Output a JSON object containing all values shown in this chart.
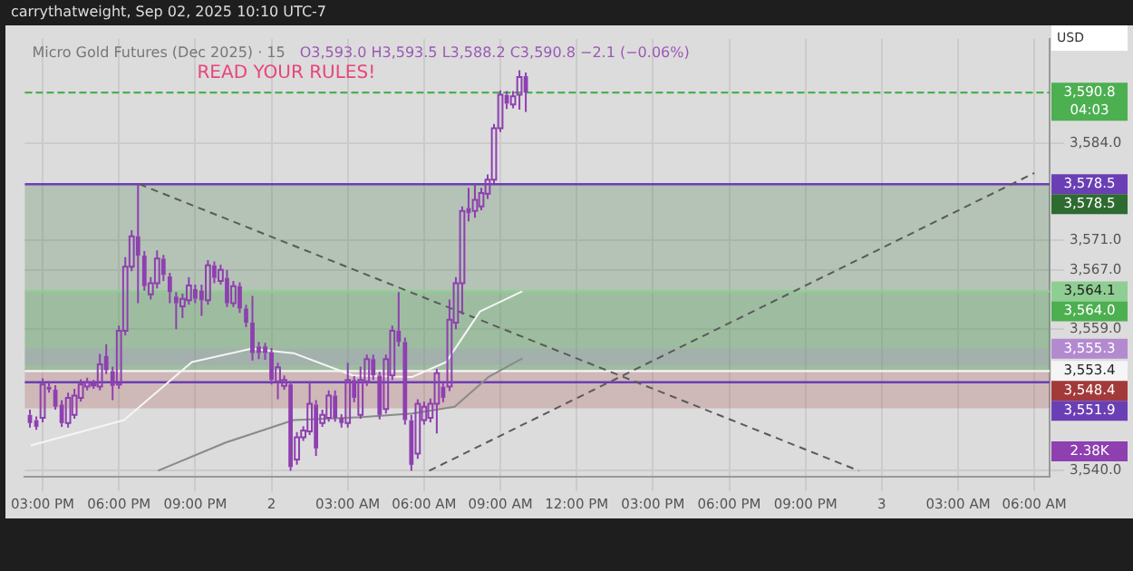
{
  "chart_data": {
    "type": "candlestick",
    "title": "Micro Gold Futures (Dec 2025) · 15",
    "subtitle": "O3,593.0 H3,593.5 L3,588.2 C3,590.8 −2.1 (−0.06%)",
    "annotations": [
      "carrythatweight, Sep 02, 2025 10:10 UTC-7",
      "READ YOUR RULES!",
      "USD",
      "2.38K"
    ],
    "color": "#8e3fb0",
    "x": [
      "2025-09-01T14:30",
      "2025-09-01T14:45",
      "2025-09-01T15:00",
      "2025-09-01T15:15",
      "2025-09-01T15:30",
      "2025-09-01T15:45",
      "2025-09-01T16:00",
      "2025-09-01T16:15",
      "2025-09-01T16:30",
      "2025-09-01T16:45",
      "2025-09-01T17:00",
      "2025-09-01T17:15",
      "2025-09-01T17:30",
      "2025-09-01T17:45",
      "2025-09-01T18:00",
      "2025-09-01T18:15",
      "2025-09-01T18:30",
      "2025-09-01T18:45",
      "2025-09-01T19:00",
      "2025-09-01T19:15",
      "2025-09-01T19:30",
      "2025-09-01T19:45",
      "2025-09-01T20:00",
      "2025-09-01T20:15",
      "2025-09-01T20:30",
      "2025-09-01T20:45",
      "2025-09-01T21:00",
      "2025-09-01T21:15",
      "2025-09-01T21:30",
      "2025-09-01T21:45",
      "2025-09-01T22:00",
      "2025-09-01T22:15",
      "2025-09-01T22:30",
      "2025-09-01T22:45",
      "2025-09-01T23:00",
      "2025-09-01T23:15",
      "2025-09-01T23:30",
      "2025-09-01T23:45",
      "2025-09-02T00:00",
      "2025-09-02T00:15",
      "2025-09-02T00:30",
      "2025-09-02T00:45",
      "2025-09-02T01:00",
      "2025-09-02T01:15",
      "2025-09-02T01:30",
      "2025-09-02T01:45",
      "2025-09-02T02:00",
      "2025-09-02T02:15",
      "2025-09-02T02:30",
      "2025-09-02T02:45",
      "2025-09-02T03:00",
      "2025-09-02T03:15",
      "2025-09-02T03:30",
      "2025-09-02T03:45",
      "2025-09-02T04:00",
      "2025-09-02T04:15",
      "2025-09-02T04:30",
      "2025-09-02T04:45",
      "2025-09-02T05:00",
      "2025-09-02T05:15",
      "2025-09-02T05:30",
      "2025-09-02T05:45",
      "2025-09-02T06:00",
      "2025-09-02T06:15",
      "2025-09-02T06:30",
      "2025-09-02T06:45",
      "2025-09-02T07:00",
      "2025-09-02T07:15",
      "2025-09-02T07:30",
      "2025-09-02T07:45",
      "2025-09-02T08:00",
      "2025-09-02T08:15",
      "2025-09-02T08:30",
      "2025-09-02T08:45",
      "2025-09-02T09:00",
      "2025-09-02T09:15",
      "2025-09-02T09:30",
      "2025-09-02T09:45",
      "2025-09-02T10:00"
    ],
    "ohlc": [
      [
        3547.5,
        3548.2,
        3545.8,
        3546.4
      ],
      [
        3546.8,
        3547.3,
        3545.5,
        3545.9
      ],
      [
        3547.1,
        3552.4,
        3546.5,
        3551.6
      ],
      [
        3551.3,
        3552.0,
        3550.5,
        3550.9
      ],
      [
        3550.9,
        3551.5,
        3548.2,
        3548.6
      ],
      [
        3548.9,
        3549.5,
        3545.9,
        3546.4
      ],
      [
        3546.4,
        3550.5,
        3545.8,
        3549.8
      ],
      [
        3547.5,
        3551.0,
        3547.0,
        3550.1
      ],
      [
        3549.8,
        3552.3,
        3549.3,
        3551.6
      ],
      [
        3551.3,
        3552.5,
        3550.8,
        3551.9
      ],
      [
        3551.5,
        3552.2,
        3551.0,
        3551.7
      ],
      [
        3551.3,
        3555.7,
        3550.8,
        3554.3
      ],
      [
        3555.4,
        3557.0,
        3553.0,
        3553.5
      ],
      [
        3553.4,
        3554.0,
        3549.5,
        3551.4
      ],
      [
        3551.6,
        3559.5,
        3551.0,
        3558.8
      ],
      [
        3558.8,
        3568.7,
        3558.2,
        3567.4
      ],
      [
        3567.4,
        3572.3,
        3566.8,
        3571.5
      ],
      [
        3571.5,
        3578.5,
        3562.5,
        3568.9
      ],
      [
        3568.9,
        3569.5,
        3564.2,
        3564.8
      ],
      [
        3563.7,
        3566.0,
        3563.0,
        3565.2
      ],
      [
        3565.2,
        3569.6,
        3564.5,
        3568.5
      ],
      [
        3568.5,
        3569.0,
        3565.5,
        3566.3
      ],
      [
        3566.1,
        3566.6,
        3562.5,
        3564.0
      ],
      [
        3563.4,
        3564.0,
        3559.0,
        3562.5
      ],
      [
        3562.1,
        3563.8,
        3560.5,
        3563.1
      ],
      [
        3562.9,
        3566.0,
        3562.3,
        3564.9
      ],
      [
        3564.4,
        3565.0,
        3562.5,
        3563.1
      ],
      [
        3564.2,
        3565.0,
        3560.8,
        3562.9
      ],
      [
        3562.9,
        3568.3,
        3562.3,
        3567.6
      ],
      [
        3567.6,
        3568.1,
        3565.2,
        3565.9
      ],
      [
        3565.5,
        3567.7,
        3565.0,
        3567.0
      ],
      [
        3565.9,
        3567.0,
        3562.0,
        3562.5
      ],
      [
        3562.5,
        3565.5,
        3562.0,
        3564.8
      ],
      [
        3564.8,
        3565.3,
        3561.2,
        3561.8
      ],
      [
        3561.8,
        3562.3,
        3559.3,
        3559.9
      ],
      [
        3559.9,
        3563.5,
        3554.8,
        3555.8
      ],
      [
        3556.7,
        3557.3,
        3555.0,
        3555.8
      ],
      [
        3556.7,
        3557.2,
        3554.9,
        3555.8
      ],
      [
        3555.9,
        3556.5,
        3551.6,
        3552.2
      ],
      [
        3552.0,
        3554.5,
        3549.6,
        3553.9
      ],
      [
        3551.4,
        3552.8,
        3550.9,
        3552.2
      ],
      [
        3551.6,
        3552.0,
        3540.0,
        3540.5
      ],
      [
        3541.5,
        3545.2,
        3540.8,
        3544.5
      ],
      [
        3544.5,
        3546.0,
        3544.0,
        3545.4
      ],
      [
        3545.3,
        3552.0,
        3544.8,
        3549.0
      ],
      [
        3548.9,
        3549.5,
        3542.0,
        3543.0
      ],
      [
        3546.4,
        3548.2,
        3545.9,
        3547.5
      ],
      [
        3547.1,
        3550.8,
        3546.6,
        3550.1
      ],
      [
        3550.1,
        3550.8,
        3546.6,
        3547.1
      ],
      [
        3547.1,
        3547.6,
        3545.8,
        3546.4
      ],
      [
        3546.4,
        3554.5,
        3545.8,
        3552.2
      ],
      [
        3552.2,
        3552.7,
        3549.2,
        3549.8
      ],
      [
        3547.5,
        3554.0,
        3547.0,
        3552.2
      ],
      [
        3552.0,
        3555.6,
        3551.4,
        3555.0
      ],
      [
        3555.0,
        3555.6,
        3552.2,
        3552.8
      ],
      [
        3552.8,
        3553.3,
        3546.9,
        3547.5
      ],
      [
        3548.3,
        3555.6,
        3547.7,
        3555.0
      ],
      [
        3552.8,
        3559.5,
        3552.2,
        3558.8
      ],
      [
        3558.8,
        3564.0,
        3556.7,
        3557.3
      ],
      [
        3557.3,
        3557.9,
        3546.2,
        3546.8
      ],
      [
        3546.8,
        3547.5,
        3540.0,
        3540.8
      ],
      [
        3542.3,
        3549.6,
        3541.6,
        3549.0
      ],
      [
        3546.8,
        3549.3,
        3546.2,
        3548.6
      ],
      [
        3547.1,
        3549.7,
        3546.5,
        3549.0
      ],
      [
        3549.0,
        3553.7,
        3545.0,
        3553.1
      ],
      [
        3551.3,
        3552.0,
        3549.2,
        3549.8
      ],
      [
        3551.3,
        3563.0,
        3550.7,
        3560.3
      ],
      [
        3559.9,
        3566.0,
        3559.0,
        3565.2
      ],
      [
        3565.2,
        3575.5,
        3561.0,
        3574.9
      ],
      [
        3575.3,
        3578.0,
        3573.5,
        3574.6
      ],
      [
        3574.9,
        3578.5,
        3574.0,
        3576.4
      ],
      [
        3575.5,
        3578.0,
        3575.0,
        3577.3
      ],
      [
        3577.2,
        3579.8,
        3576.5,
        3579.1
      ],
      [
        3579.1,
        3586.6,
        3578.6,
        3586.0
      ],
      [
        3586.0,
        3591.1,
        3585.5,
        3590.5
      ],
      [
        3590.5,
        3591.0,
        3588.6,
        3589.3
      ],
      [
        3589.2,
        3591.0,
        3588.7,
        3590.3
      ],
      [
        3590.5,
        3593.8,
        3588.5,
        3592.9
      ],
      [
        3593.0,
        3593.5,
        3588.2,
        3590.8
      ]
    ],
    "series": [
      {
        "type": "line",
        "color": "#f5f5f5",
        "x": [
          "2025-09-01T14:32",
          "2025-09-01T18:12",
          "2025-09-01T20:52",
          "2025-09-01T23:12",
          "2025-09-02T00:52",
          "2025-09-02T03:12",
          "2025-09-02T05:32",
          "2025-09-02T06:52",
          "2025-09-02T08:12",
          "2025-09-02T09:52"
        ],
        "values": [
          3543.4,
          3546.8,
          3554.6,
          3556.4,
          3555.8,
          3552.8,
          3552.6,
          3554.6,
          3561.4,
          3564.1
        ]
      },
      {
        "type": "line",
        "color": "#8a8a8a",
        "x": [
          "2025-09-01T19:32",
          "2025-09-01T22:12",
          "2025-09-02T00:52",
          "2025-09-02T03:32",
          "2025-09-02T05:32",
          "2025-09-02T07:12",
          "2025-09-02T08:32",
          "2025-09-02T09:52"
        ],
        "values": [
          3540.0,
          3543.8,
          3546.8,
          3547.2,
          3547.7,
          3548.6,
          3552.6,
          3555.1
        ]
      },
      {
        "type": "line",
        "color": "#5a5a5a",
        "line_style": "dashed",
        "x": [
          "2025-09-01T18:48",
          "2025-09-02T23:06"
        ],
        "values": [
          3578.5,
          3540.0
        ]
      },
      {
        "type": "line",
        "color": "#5a5a5a",
        "line_style": "dashed",
        "x": [
          "2025-09-02T06:12",
          "2025-09-03T06:00"
        ],
        "values": [
          3540.0,
          3580.0
        ]
      }
    ],
    "xlim": [
      "2025-09-01T14:18",
      "2025-09-03T06:36"
    ],
    "xticks": [
      {
        "value": "2025-09-01T15:00",
        "label": "03:00 PM"
      },
      {
        "value": "2025-09-01T18:00",
        "label": "06:00 PM"
      },
      {
        "value": "2025-09-01T21:00",
        "label": "09:00 PM"
      },
      {
        "value": "2025-09-02T00:00",
        "label": "2"
      },
      {
        "value": "2025-09-02T03:00",
        "label": "03:00 AM"
      },
      {
        "value": "2025-09-02T06:00",
        "label": "06:00 AM"
      },
      {
        "value": "2025-09-02T09:00",
        "label": "09:00 AM"
      },
      {
        "value": "2025-09-02T12:00",
        "label": "12:00 PM"
      },
      {
        "value": "2025-09-02T15:00",
        "label": "03:00 PM"
      },
      {
        "value": "2025-09-02T18:00",
        "label": "06:00 PM"
      },
      {
        "value": "2025-09-02T21:00",
        "label": "09:00 PM"
      },
      {
        "value": "2025-09-03T00:00",
        "label": "3"
      },
      {
        "value": "2025-09-03T03:00",
        "label": "03:00 AM"
      },
      {
        "value": "2025-09-03T06:00",
        "label": "06:00 AM"
      }
    ],
    "ylim": [
      3539.2,
      3598
    ],
    "yticks": [
      {
        "value": 3540,
        "label": "3,540.0"
      },
      {
        "value": 3559,
        "label": "3,559.0"
      },
      {
        "value": 3567,
        "label": "3,567.0"
      },
      {
        "value": 3571,
        "label": "3,571.0"
      },
      {
        "value": 3584,
        "label": "3,584.0"
      }
    ],
    "grid": true,
    "ref_lines": [
      {
        "axis": "y",
        "value": 3590.8,
        "label": "3,590.8\n04:03",
        "color": "#4caf50",
        "line_style": "dashed"
      },
      {
        "axis": "y",
        "value": 3578.5,
        "label": "3,578.5",
        "color": "#6a3fb5"
      },
      {
        "axis": "y",
        "value": 3564.1,
        "label": "3,564.1",
        "color": "#8fce92"
      },
      {
        "axis": "y",
        "value": 3551.9,
        "label": "3,551.9",
        "color": "#6a3fb5"
      },
      {
        "axis": "y",
        "value": 3553.4,
        "label": "3,553.4",
        "color": "#f5f5f5"
      }
    ],
    "bands": [
      {
        "axis": "y",
        "from": 3553.4,
        "to": 3578.5,
        "label": "3,578.5",
        "color": "#2e6b30"
      },
      {
        "axis": "y",
        "from": 3553.4,
        "to": 3564.0,
        "label": "3,564.0",
        "color": "#4caf50"
      },
      {
        "axis": "y",
        "from": 3554.2,
        "to": 3556.4,
        "label": "3,555.3",
        "color": "#b38ad0"
      },
      {
        "axis": "y",
        "from": 3548.4,
        "to": 3553.4,
        "label": "3,548.4",
        "color": "#a33a3a"
      }
    ]
  }
}
